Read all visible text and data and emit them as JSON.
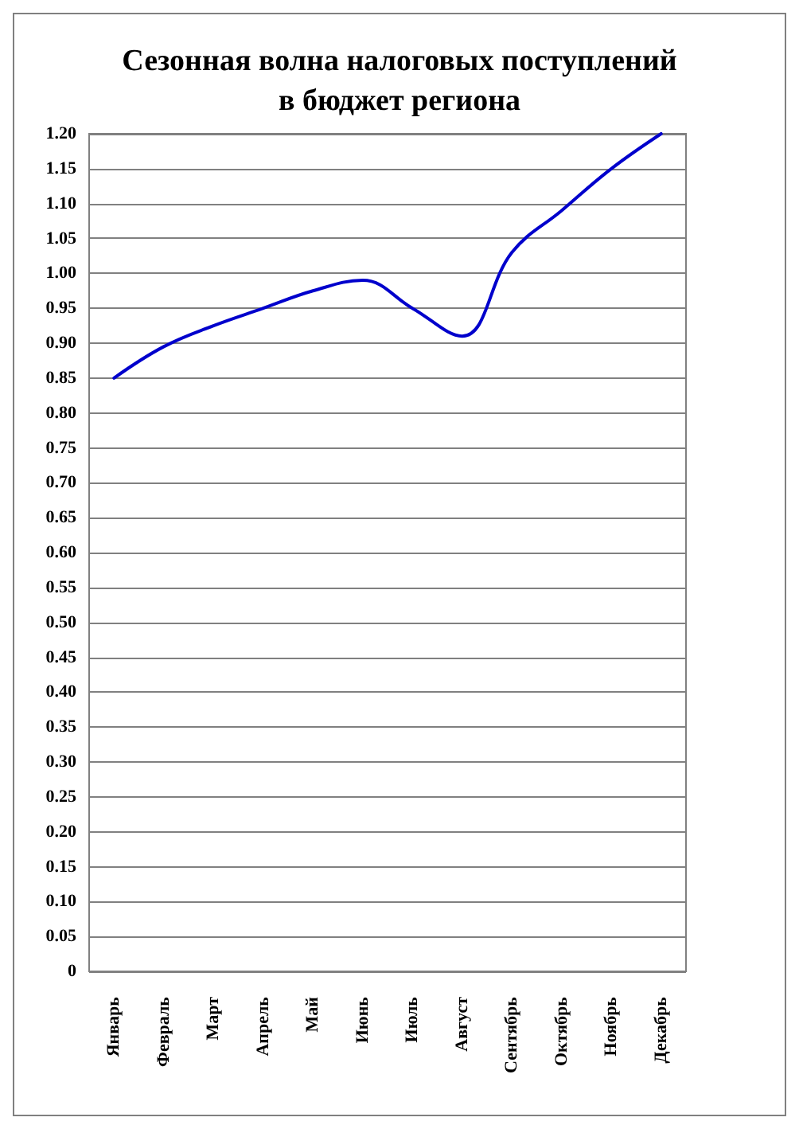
{
  "chart_data": {
    "type": "line",
    "title": "Сезонная волна налоговых поступлений\nв бюджет региона",
    "categories": [
      "Январь",
      "Февраль",
      "Март",
      "Апрель",
      "Май",
      "Июнь",
      "Июль",
      "Август",
      "Сентябрь",
      "Октябрь",
      "Ноябрь",
      "Декабрь"
    ],
    "series": [
      {
        "color": "#0000cc",
        "values": [
          0.85,
          0.895,
          0.925,
          0.95,
          0.975,
          0.99,
          0.95,
          0.91,
          1.03,
          1.09,
          1.15,
          1.2
        ]
      }
    ],
    "ylim": [
      0,
      1.2
    ],
    "yticks": [
      0,
      {
        "value": 0.05,
        "label": "0.05"
      },
      {
        "value": 0.1,
        "label": "0.10"
      },
      {
        "value": 0.15,
        "label": "0.15"
      },
      {
        "value": 0.2,
        "label": "0.20"
      },
      {
        "value": 0.25,
        "label": "0.25"
      },
      {
        "value": 0.3,
        "label": "0.30"
      },
      {
        "value": 0.35,
        "label": "0.35"
      },
      {
        "value": 0.4,
        "label": "0.40"
      },
      {
        "value": 0.45,
        "label": "0.45"
      },
      {
        "value": 0.5,
        "label": "0.50"
      },
      {
        "value": 0.55,
        "label": "0.55"
      },
      {
        "value": 0.6,
        "label": "0.60"
      },
      {
        "value": 0.65,
        "label": "0.65"
      },
      {
        "value": 0.7,
        "label": "0.70"
      },
      {
        "value": 0.75,
        "label": "0.75"
      },
      {
        "value": 0.8,
        "label": "0.80"
      },
      {
        "value": 0.85,
        "label": "0.85"
      },
      {
        "value": 0.9,
        "label": "0.90"
      },
      {
        "value": 0.95,
        "label": "0.95"
      },
      {
        "value": 1.0,
        "label": "1.00"
      },
      {
        "value": 1.05,
        "label": "1.05"
      },
      {
        "value": 1.1,
        "label": "1.10"
      },
      {
        "value": 1.15,
        "label": "1.15"
      },
      {
        "value": 1.2,
        "label": "1.20"
      }
    ],
    "grid": "y",
    "marker": "none",
    "line_style": "solid"
  }
}
